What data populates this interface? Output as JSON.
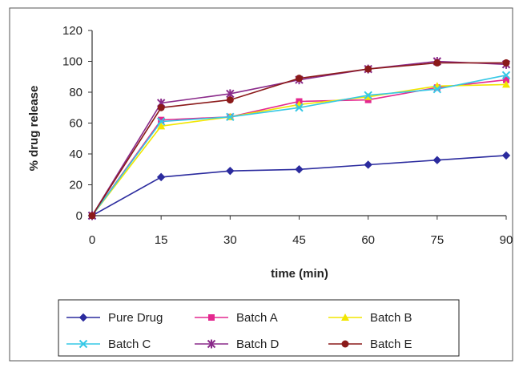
{
  "chart_data": {
    "type": "line",
    "title": "",
    "xlabel": "time (min)",
    "ylabel": "% drug release",
    "x": [
      0,
      15,
      30,
      45,
      60,
      75,
      90
    ],
    "x_tick_labels": [
      "0",
      "15",
      "30",
      "45",
      "60",
      "75",
      "90"
    ],
    "y_ticks": [
      0,
      20,
      40,
      60,
      80,
      100,
      120
    ],
    "y_tick_labels": [
      "0",
      "20",
      "40",
      "60",
      "80",
      "100",
      "120"
    ],
    "xlim": [
      0,
      90
    ],
    "ylim": [
      0,
      120
    ],
    "grid": false,
    "legend_position": "bottom",
    "series": [
      {
        "name": "Pure Drug",
        "color": "#2b2b9e",
        "marker": "diamond",
        "values": [
          0,
          25,
          29,
          30,
          33,
          36,
          39
        ]
      },
      {
        "name": "Batch A",
        "color": "#e4288f",
        "marker": "square",
        "values": [
          0,
          62,
          64,
          74,
          75,
          83,
          88
        ]
      },
      {
        "name": "Batch B",
        "color": "#f2e600",
        "marker": "triangle",
        "values": [
          0,
          58,
          64,
          72,
          77,
          84,
          85
        ]
      },
      {
        "name": "Batch C",
        "color": "#35c8e6",
        "marker": "x",
        "values": [
          0,
          61,
          64,
          70,
          78,
          82,
          91
        ]
      },
      {
        "name": "Batch D",
        "color": "#8a2a8a",
        "marker": "star",
        "values": [
          0,
          73,
          79,
          88,
          95,
          100,
          98
        ]
      },
      {
        "name": "Batch E",
        "color": "#8b1a1a",
        "marker": "circle",
        "values": [
          0,
          70,
          75,
          89,
          95,
          99,
          99
        ]
      }
    ]
  }
}
